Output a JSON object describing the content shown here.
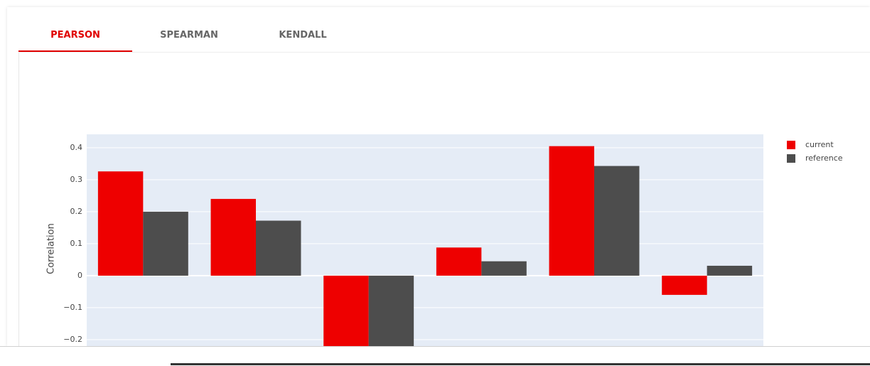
{
  "tabs": [
    "PEARSON",
    "SPEARMAN",
    "KENDALL"
  ],
  "active_tab": 0,
  "chart_data": {
    "type": "bar",
    "y_label": "Correlation",
    "categories": [
      null,
      null,
      null,
      null,
      null,
      null
    ],
    "series": [
      {
        "name": "current",
        "color": "#ee0000",
        "values": [
          0.326,
          0.24,
          -0.25,
          0.088,
          0.405,
          -0.06
        ]
      },
      {
        "name": "reference",
        "color": "#4d4d4d",
        "values": [
          0.2,
          0.172,
          -0.25,
          0.045,
          0.343,
          0.031
        ]
      }
    ],
    "ylim": [
      -0.3,
      0.442
    ],
    "yticks": [
      {
        "value": -0.2,
        "label": "−0.2"
      },
      {
        "value": -0.1,
        "label": "−0.1"
      },
      0,
      0.1,
      0.2,
      0.3,
      0.4
    ],
    "grid": true,
    "legend": "right",
    "background": "#e5ecf6"
  }
}
